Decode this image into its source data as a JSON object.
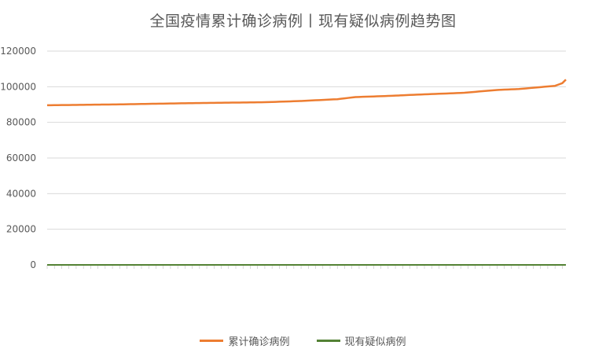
{
  "chart_data": {
    "type": "line",
    "title": "全国疫情累计确诊病例丨现有疑似病例趋势图",
    "xlabel": "",
    "ylabel": "",
    "ylim": [
      0,
      120000
    ],
    "y_ticks": [
      "0",
      "20000",
      "40000",
      "60000",
      "80000",
      "100000",
      "120000"
    ],
    "grid": true,
    "legend_position": "bottom",
    "x_count": 143,
    "series": [
      {
        "name": "累计确诊病例",
        "color": "#ED7D31",
        "key_points": [
          [
            0,
            89600
          ],
          [
            20,
            90100
          ],
          [
            40,
            90800
          ],
          [
            60,
            91300
          ],
          [
            70,
            92000
          ],
          [
            80,
            93000
          ],
          [
            85,
            94200
          ],
          [
            95,
            94900
          ],
          [
            100,
            95400
          ],
          [
            105,
            95800
          ],
          [
            115,
            96600
          ],
          [
            120,
            97500
          ],
          [
            125,
            98300
          ],
          [
            130,
            98700
          ],
          [
            140,
            100500
          ],
          [
            142,
            102000
          ],
          [
            143,
            104000
          ]
        ]
      },
      {
        "name": "现有疑似病例",
        "color": "#548235",
        "key_points": [
          [
            0,
            10
          ],
          [
            143,
            10
          ]
        ]
      }
    ]
  }
}
